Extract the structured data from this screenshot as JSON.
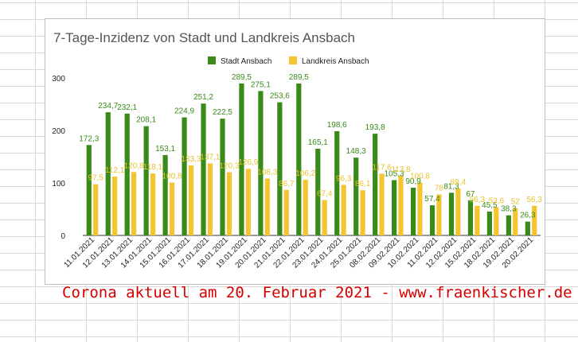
{
  "caption": "Corona aktuell am 20. Februar 2021 - www.fraenkischer.de",
  "colors": {
    "stadt": "#3a8a1a",
    "landkreis": "#f2c531",
    "stadt_label": "#3a8a1a",
    "landkreis_label": "#e6c22e",
    "axis_text": "#222222",
    "title": "#555555",
    "grid": "#d9d9d9"
  },
  "chart_data": {
    "type": "bar",
    "title": "7-Tage-Inzidenz von Stadt und Landkreis Ansbach",
    "xlabel": "",
    "ylabel": "",
    "ylim": [
      0,
      300
    ],
    "yticks": [
      "0",
      "100",
      "200",
      "300"
    ],
    "legend_position": "top",
    "categories": [
      "11.01.2021",
      "12.01.2021",
      "13.01.2021",
      "14.01.2021",
      "15.01.2021",
      "16.01.2021",
      "17.01.2021",
      "18.01.2021",
      "19.01.2021",
      "20.01.2021",
      "21.01.2021",
      "22.01.2021",
      "23.01.2021",
      "24.01.2021",
      "25.01.2021",
      "08.02.2021",
      "09.02.2021",
      "10.02.2021",
      "11.02.2021",
      "12.02.2021",
      "15.02.2021",
      "18.02.2021",
      "19.02.2021",
      "20.02.2021"
    ],
    "series": [
      {
        "name": "Stadt Ansbach",
        "values": [
          172.3,
          234.7,
          232.1,
          208.1,
          153.1,
          224.9,
          251.2,
          222.5,
          289.5,
          275.1,
          253.6,
          289.5,
          165.1,
          198.6,
          148.3,
          193.8,
          105.3,
          90.9,
          57.4,
          81.3,
          67,
          45.5,
          38.3,
          26.3
        ],
        "labels": [
          "172,3",
          "234,7",
          "232,1",
          "208,1",
          "153,1",
          "224,9",
          "251,2",
          "222,5",
          "289,5",
          "275,1",
          "253,6",
          "289,5",
          "165,1",
          "198,6",
          "148,3",
          "193,8",
          "105,3",
          "90,9",
          "57,4",
          "81,3",
          "67",
          "45,5",
          "38,3",
          "26,3"
        ]
      },
      {
        "name": "Landkreis Ansbach",
        "values": [
          97.5,
          112.1,
          120.8,
          118.1,
          100.8,
          133.3,
          137.1,
          120.3,
          126.9,
          108.3,
          86.7,
          106.2,
          67.4,
          96.3,
          86.1,
          117.6,
          113.8,
          100.8,
          78,
          89.4,
          56.3,
          53.6,
          52,
          56.3
        ],
        "labels": [
          "97,5",
          "112,1",
          "120,8",
          "118,1",
          "100,8",
          "133,3",
          "137,1",
          "120,3",
          "126,9",
          "108,3",
          "86,7",
          "106,2",
          "67,4",
          "96,3",
          "86,1",
          "117,6",
          "113,8",
          "100,8",
          "78",
          "89,4",
          "56,3",
          "53,6",
          "52",
          "56,3"
        ]
      }
    ]
  }
}
